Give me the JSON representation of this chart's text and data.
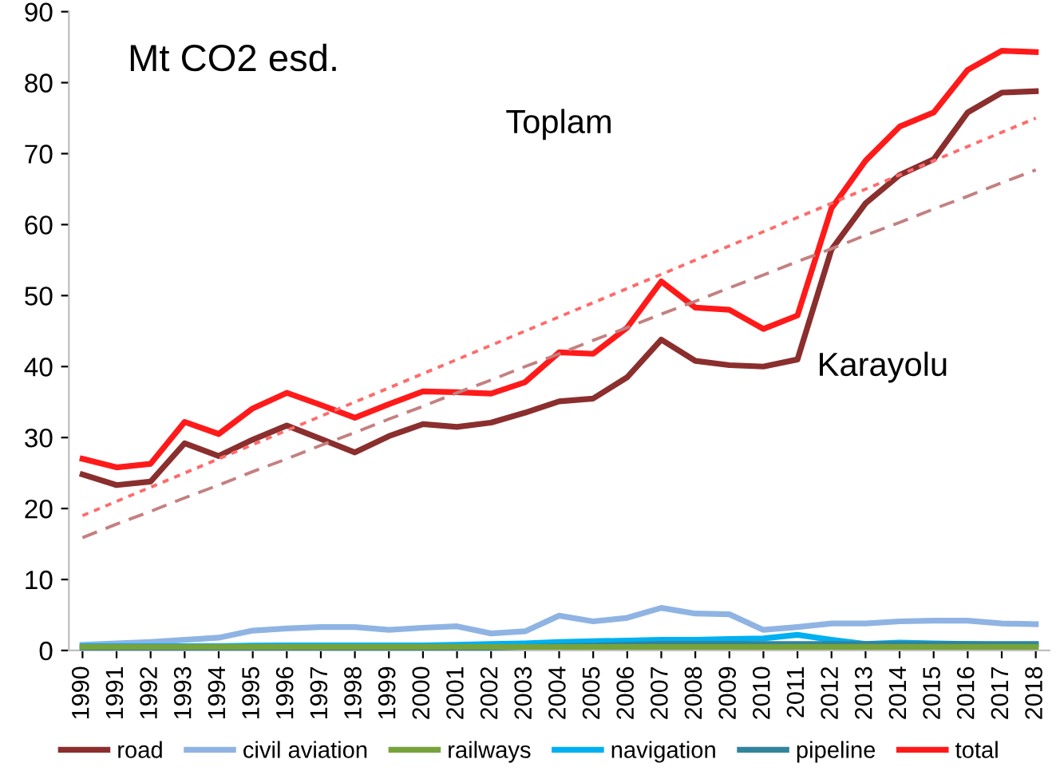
{
  "chart_data": {
    "type": "line",
    "title": "Mt CO2 esd.",
    "categories": [
      "1990",
      "1991",
      "1992",
      "1993",
      "1994",
      "1995",
      "1996",
      "1997",
      "1998",
      "1999",
      "2000",
      "2001",
      "2002",
      "2003",
      "2004",
      "2005",
      "2006",
      "2007",
      "2008",
      "2009",
      "2010",
      "2011",
      "2012",
      "2013",
      "2014",
      "2015",
      "2016",
      "2017",
      "2018"
    ],
    "series": [
      {
        "name": "road",
        "color": "#8b2e2e",
        "values": [
          24.8,
          23.3,
          23.8,
          29.2,
          27.4,
          29.7,
          31.7,
          29.8,
          27.9,
          30.2,
          31.9,
          31.5,
          32.1,
          33.5,
          35.1,
          35.5,
          38.5,
          43.8,
          40.8,
          40.2,
          40.0,
          41.0,
          56.5,
          63.0,
          67.0,
          69.2,
          75.8,
          78.6,
          78.8
        ]
      },
      {
        "name": "civil aviation",
        "color": "#8fb4e3",
        "values": [
          0.8,
          1.0,
          1.2,
          1.5,
          1.8,
          2.8,
          3.1,
          3.3,
          3.3,
          2.9,
          3.2,
          3.4,
          2.4,
          2.7,
          4.9,
          4.1,
          4.6,
          6.0,
          5.2,
          5.1,
          2.9,
          3.3,
          3.8,
          3.8,
          4.1,
          4.2,
          4.2,
          3.8,
          3.7
        ]
      },
      {
        "name": "railways",
        "color": "#77a33c",
        "values": [
          0.5,
          0.5,
          0.5,
          0.5,
          0.5,
          0.5,
          0.5,
          0.5,
          0.5,
          0.5,
          0.5,
          0.5,
          0.5,
          0.5,
          0.5,
          0.5,
          0.5,
          0.5,
          0.5,
          0.5,
          0.5,
          0.5,
          0.5,
          0.5,
          0.5,
          0.5,
          0.5,
          0.5,
          0.5
        ]
      },
      {
        "name": "navigation",
        "color": "#00b0f0",
        "values": [
          0.6,
          0.6,
          0.6,
          0.6,
          0.6,
          0.7,
          0.7,
          0.7,
          0.7,
          0.7,
          0.7,
          0.8,
          0.9,
          1.0,
          1.2,
          1.3,
          1.4,
          1.5,
          1.5,
          1.6,
          1.7,
          2.2,
          1.5,
          0.9,
          1.1,
          1.0,
          0.9,
          0.8,
          0.8
        ]
      },
      {
        "name": "pipeline",
        "color": "#31849b",
        "values": [
          0.3,
          0.3,
          0.3,
          0.3,
          0.3,
          0.3,
          0.3,
          0.3,
          0.3,
          0.3,
          0.3,
          0.4,
          0.4,
          0.5,
          0.6,
          0.7,
          0.8,
          0.9,
          0.9,
          0.9,
          0.9,
          0.9,
          0.9,
          0.9,
          0.9,
          0.9,
          0.9,
          0.9,
          0.9
        ]
      },
      {
        "name": "total",
        "color": "#ff1a1a",
        "values": [
          27.0,
          25.8,
          26.3,
          32.2,
          30.5,
          34.1,
          36.3,
          34.6,
          32.8,
          34.7,
          36.5,
          36.4,
          36.2,
          37.8,
          42.0,
          41.8,
          45.5,
          52.0,
          48.3,
          48.0,
          45.3,
          47.2,
          62.3,
          69.0,
          73.8,
          75.8,
          81.8,
          84.5,
          84.3
        ]
      },
      {
        "color": "#ff6b6b",
        "line_style": "dotted",
        "values": [
          19,
          21,
          23,
          25,
          27,
          29,
          31,
          33,
          35,
          37,
          39,
          41,
          43,
          45,
          47,
          49,
          51,
          53,
          55,
          57,
          59,
          61,
          63,
          65,
          67,
          69,
          71,
          73,
          75
        ]
      },
      {
        "color": "#c48080",
        "line_style": "dashed",
        "values": [
          15.9,
          17.8,
          19.6,
          21.5,
          23.3,
          25.2,
          27.0,
          28.9,
          30.7,
          32.6,
          34.4,
          36.3,
          38.1,
          40.0,
          41.8,
          43.7,
          45.5,
          47.4,
          49.2,
          51.1,
          52.9,
          54.8,
          56.6,
          58.5,
          60.3,
          62.2,
          64.0,
          65.9,
          67.7
        ]
      }
    ],
    "annotations": [
      "Toplam",
      "Karayolu"
    ],
    "ylim": [
      0,
      90
    ],
    "yticks": [
      0,
      10,
      20,
      30,
      40,
      50,
      60,
      70,
      80,
      90
    ],
    "grid": false,
    "legend": "bottom",
    "line_style": "solid",
    "marker": "none"
  }
}
